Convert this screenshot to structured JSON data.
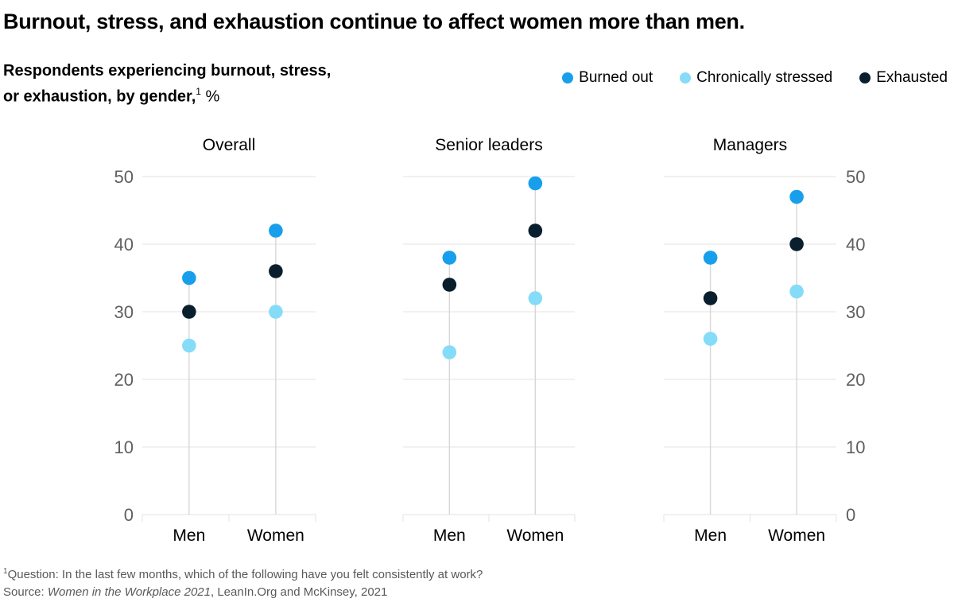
{
  "page": {
    "title": "Burnout, stress, and exhaustion continue to affect women more than men.",
    "subtitle": {
      "line1": "Respondents experiencing burnout, stress,",
      "line2_pre": "or exhaustion, by gender,",
      "line2_sup": "1",
      "line2_post": " %"
    },
    "footnote": {
      "sup": "1",
      "question": "Question: In the last few months, which of the following have you felt consistently at work?",
      "source_prefix": "Source: ",
      "source_italic": "Women in the Workplace 2021",
      "source_suffix": ", LeanIn.Org and McKinsey, 2021"
    }
  },
  "chart_data": {
    "type": "scatter",
    "title": "Respondents experiencing burnout, stress, or exhaustion, by gender, %",
    "unit": "%",
    "ylim": [
      0,
      50
    ],
    "yticks": [
      0,
      10,
      20,
      30,
      40,
      50
    ],
    "grid": true,
    "legend_position": "top-right",
    "categories": [
      "Men",
      "Women"
    ],
    "series_names": [
      "Burned out",
      "Chronically stressed",
      "Exhausted"
    ],
    "series_colors": [
      "#189FEC",
      "#85DCF8",
      "#0A1F2E"
    ],
    "panels": [
      {
        "label": "Overall",
        "series": [
          {
            "name": "Burned out",
            "values": [
              35,
              42
            ]
          },
          {
            "name": "Chronically stressed",
            "values": [
              25,
              30
            ]
          },
          {
            "name": "Exhausted",
            "values": [
              30,
              36
            ]
          }
        ]
      },
      {
        "label": "Senior leaders",
        "series": [
          {
            "name": "Burned out",
            "values": [
              38,
              49
            ]
          },
          {
            "name": "Chronically stressed",
            "values": [
              24,
              32
            ]
          },
          {
            "name": "Exhausted",
            "values": [
              34,
              42
            ]
          }
        ]
      },
      {
        "label": "Managers",
        "series": [
          {
            "name": "Burned out",
            "values": [
              38,
              47
            ]
          },
          {
            "name": "Chronically stressed",
            "values": [
              26,
              33
            ]
          },
          {
            "name": "Exhausted",
            "values": [
              32,
              40
            ]
          }
        ]
      }
    ]
  },
  "style": {
    "grid_color": "#e3e3e3",
    "stem_color": "#d7d7d7",
    "axis_label_color": "#5f5f5f",
    "text_color": "#000000",
    "footnote_color": "#595959"
  }
}
